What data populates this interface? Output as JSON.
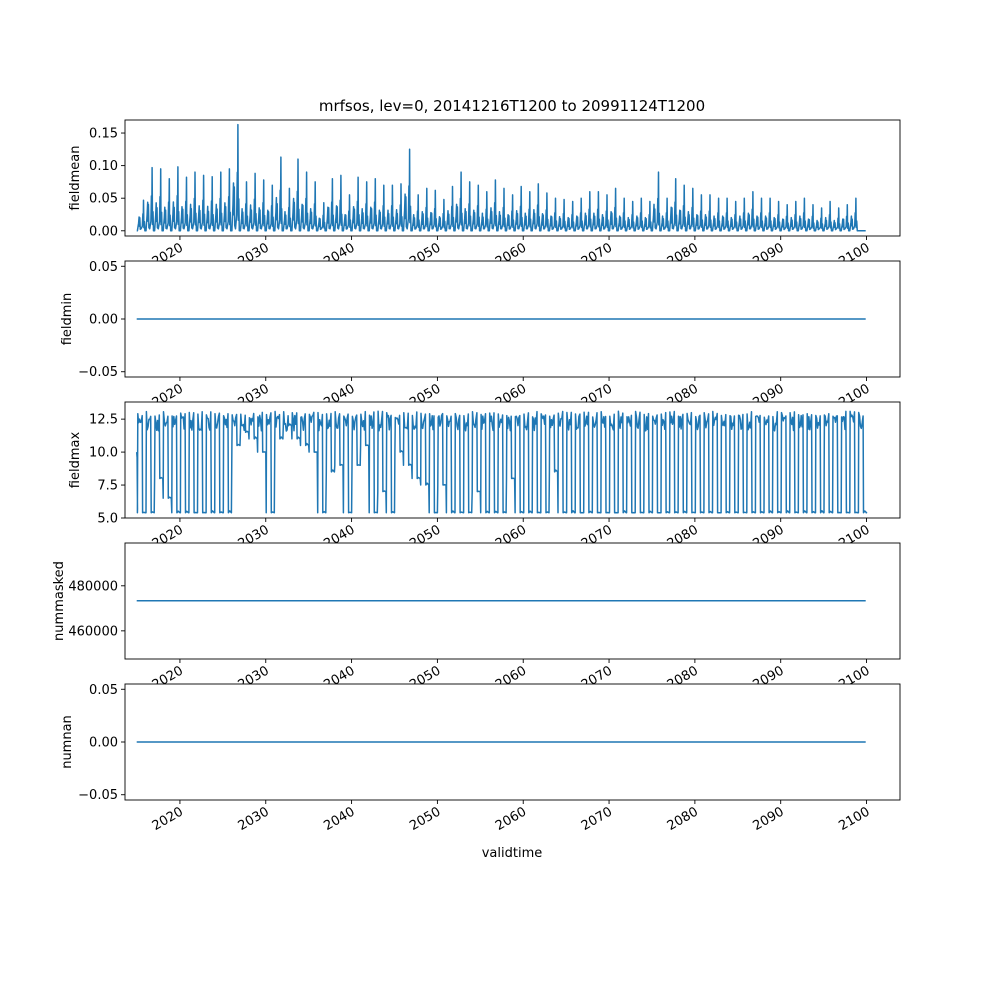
{
  "title": "mrfsos, lev=0, 20141216T1200 to 20991124T1200",
  "xlabel": "validtime",
  "x_range": [
    2013.6,
    2103.9
  ],
  "x_ticks": [
    2020,
    2030,
    2040,
    2050,
    2060,
    2070,
    2080,
    2090,
    2100
  ],
  "x_tick_labels": [
    "2020",
    "2030",
    "2040",
    "2050",
    "2060",
    "2070",
    "2080",
    "2090",
    "2100"
  ],
  "series_color": "#1f77b4",
  "chart_data": [
    {
      "type": "line",
      "ylabel": "fieldmean",
      "x_start": 2014.96,
      "x_end": 2099.9,
      "ylim": [
        -0.008,
        0.17
      ],
      "yticks": [
        0.0,
        0.05,
        0.1,
        0.15
      ],
      "ytick_labels": [
        "0.00",
        "0.05",
        "0.10",
        "0.15"
      ],
      "pattern": "seasonal-spikes",
      "baseline": 0.0,
      "annual_peaks": [
        0.047,
        0.097,
        0.095,
        0.08,
        0.098,
        0.082,
        0.09,
        0.085,
        0.083,
        0.09,
        0.095,
        0.163,
        0.075,
        0.088,
        0.078,
        0.07,
        0.113,
        0.065,
        0.11,
        0.09,
        0.075,
        0.043,
        0.08,
        0.085,
        0.055,
        0.082,
        0.075,
        0.08,
        0.07,
        0.07,
        0.072,
        0.125,
        0.055,
        0.065,
        0.062,
        0.048,
        0.068,
        0.09,
        0.075,
        0.07,
        0.06,
        0.078,
        0.065,
        0.055,
        0.068,
        0.06,
        0.072,
        0.058,
        0.05,
        0.048,
        0.045,
        0.05,
        0.06,
        0.06,
        0.055,
        0.065,
        0.05,
        0.045,
        0.05,
        0.045,
        0.09,
        0.05,
        0.08,
        0.07,
        0.065,
        0.055,
        0.055,
        0.05,
        0.05,
        0.045,
        0.05,
        0.06,
        0.05,
        0.05,
        0.045,
        0.04,
        0.045,
        0.05,
        0.04,
        0.035,
        0.045,
        0.035,
        0.04,
        0.05,
        0.06
      ],
      "trough_values": [
        0.0,
        0.003
      ]
    },
    {
      "type": "line",
      "ylabel": "fieldmin",
      "x_start": 2014.96,
      "x_end": 2099.9,
      "ylim": [
        -0.055,
        0.055
      ],
      "yticks": [
        -0.05,
        0.0,
        0.05
      ],
      "ytick_labels": [
        "−0.05",
        "0.00",
        "0.05"
      ],
      "pattern": "constant",
      "value": 0.0
    },
    {
      "type": "line",
      "ylabel": "fieldmax",
      "x_start": 2014.96,
      "x_end": 2099.9,
      "ylim": [
        5.0,
        13.8
      ],
      "yticks": [
        5.0,
        7.5,
        10.0,
        12.5
      ],
      "ytick_labels": [
        "5.0",
        "7.5",
        "10.0",
        "12.5"
      ],
      "pattern": "seasonal-square",
      "low_value": 5.4,
      "high_value": 13.1,
      "start_value": 10.0,
      "partial_years": [
        2017,
        2018,
        2026,
        2027,
        2028,
        2029,
        2031,
        2032,
        2033,
        2034,
        2035,
        2037,
        2038,
        2040,
        2041,
        2043,
        2045,
        2046,
        2047,
        2048,
        2050,
        2054,
        2058,
        2063
      ],
      "partial_lows": [
        8.0,
        6.5,
        10.5,
        11.5,
        11.0,
        10.0,
        11.0,
        12.0,
        11.0,
        10.5,
        10.0,
        8.5,
        9.0,
        9.0,
        10.5,
        7.0,
        10.0,
        9.0,
        8.0,
        7.5,
        7.5,
        7.0,
        8.0,
        8.5
      ]
    },
    {
      "type": "line",
      "ylabel": "nummasked",
      "x_start": 2014.96,
      "x_end": 2099.9,
      "ylim": [
        447500,
        499000
      ],
      "yticks": [
        460000,
        480000
      ],
      "ytick_labels": [
        "460000",
        "480000"
      ],
      "pattern": "constant",
      "value": 473400
    },
    {
      "type": "line",
      "ylabel": "numnan",
      "x_start": 2014.96,
      "x_end": 2099.9,
      "ylim": [
        -0.055,
        0.055
      ],
      "yticks": [
        -0.05,
        0.0,
        0.05
      ],
      "ytick_labels": [
        "−0.05",
        "0.00",
        "0.05"
      ],
      "pattern": "constant",
      "value": 0.0
    }
  ]
}
